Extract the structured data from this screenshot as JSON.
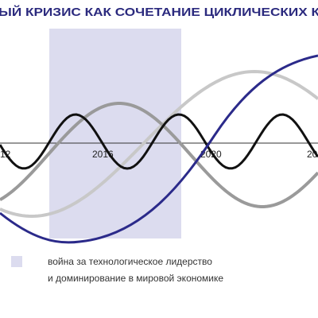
{
  "header": {
    "title": "ЫЙ КРИЗИС КАК СОЧЕТАНИЕ ЦИКЛИЧЕСКИХ К"
  },
  "axis_labels": [
    "12",
    "2016",
    "2020",
    "20"
  ],
  "legend": {
    "lines": [
      "война за технологическое лидерство",
      "и доминирование в мировой экономике"
    ]
  }
}
